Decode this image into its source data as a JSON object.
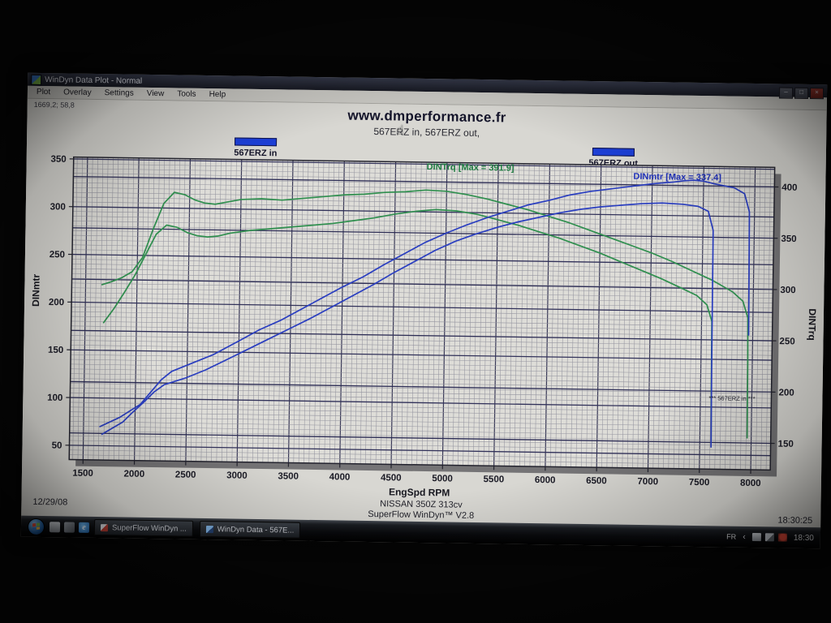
{
  "window": {
    "title": "WinDyn Data Plot - Normal",
    "controls": [
      "minimize",
      "maximize",
      "close"
    ]
  },
  "menu": {
    "items": [
      "Plot",
      "Overlay",
      "Settings",
      "View",
      "Tools",
      "Help"
    ]
  },
  "readout": {
    "value": "1669,2; 58,8"
  },
  "legend": [
    {
      "label": "567ERZ in",
      "swatch": "#1d3fd6"
    },
    {
      "label": "567ERZ out",
      "swatch": "#1d3fd6"
    }
  ],
  "chart_data": {
    "type": "line",
    "title": "www.dmperformance.fr",
    "subtitle": "567ERZ in, 567ERZ out,",
    "grid": true,
    "legend_position": "top",
    "x": {
      "label": "EngSpd RPM",
      "range": [
        1365,
        8190
      ],
      "minor_step": 50,
      "ticks": [
        1500,
        2000,
        2500,
        3000,
        3500,
        4000,
        4500,
        5000,
        5500,
        6000,
        6500,
        7000,
        7500,
        8000
      ]
    },
    "y_left": {
      "label": "DINmtr",
      "range": [
        35,
        352
      ],
      "minor_step": 5,
      "ticks": [
        50,
        100,
        150,
        200,
        250,
        300,
        350
      ]
    },
    "y_right": {
      "label": "DINTrq",
      "range": [
        124,
        419
      ],
      "ticks": [
        150,
        200,
        250,
        300,
        350,
        400
      ]
    },
    "series": [
      {
        "id": "trq-in",
        "name": "567ERZ in (DINTrq)",
        "axis": "right",
        "color": "#2f8f4e",
        "points": [
          [
            1680,
            258
          ],
          [
            1780,
            272
          ],
          [
            1880,
            288
          ],
          [
            1980,
            305
          ],
          [
            2080,
            325
          ],
          [
            2180,
            345
          ],
          [
            2280,
            354
          ],
          [
            2380,
            352
          ],
          [
            2480,
            347
          ],
          [
            2580,
            344
          ],
          [
            2680,
            343
          ],
          [
            2780,
            344
          ],
          [
            2900,
            347
          ],
          [
            3100,
            350
          ],
          [
            3300,
            352
          ],
          [
            3500,
            354
          ],
          [
            3700,
            356
          ],
          [
            3900,
            358
          ],
          [
            4100,
            361
          ],
          [
            4300,
            364
          ],
          [
            4500,
            368
          ],
          [
            4700,
            371
          ],
          [
            4900,
            373
          ],
          [
            5100,
            372
          ],
          [
            5300,
            369
          ],
          [
            5500,
            364
          ],
          [
            5700,
            359
          ],
          [
            5900,
            353
          ],
          [
            6100,
            347
          ],
          [
            6300,
            340
          ],
          [
            6500,
            333
          ],
          [
            6700,
            325
          ],
          [
            6900,
            317
          ],
          [
            7100,
            309
          ],
          [
            7300,
            300
          ],
          [
            7450,
            293
          ],
          [
            7550,
            284
          ],
          [
            7600,
            268
          ],
          [
            7605,
            200
          ],
          [
            7610,
            152
          ]
        ]
      },
      {
        "id": "trq-out",
        "name": "567ERZ out (DINTrq)",
        "axis": "right",
        "color": "#2f8f4e",
        "points": [
          [
            1660,
            295
          ],
          [
            1750,
            298
          ],
          [
            1850,
            302
          ],
          [
            1950,
            308
          ],
          [
            2050,
            322
          ],
          [
            2150,
            350
          ],
          [
            2250,
            375
          ],
          [
            2350,
            386
          ],
          [
            2450,
            384
          ],
          [
            2550,
            379
          ],
          [
            2650,
            376
          ],
          [
            2750,
            375
          ],
          [
            2850,
            377
          ],
          [
            3000,
            380
          ],
          [
            3200,
            381
          ],
          [
            3400,
            380
          ],
          [
            3600,
            382
          ],
          [
            3800,
            384
          ],
          [
            4000,
            386
          ],
          [
            4200,
            387
          ],
          [
            4400,
            389
          ],
          [
            4600,
            390
          ],
          [
            4800,
            391.9
          ],
          [
            5000,
            391
          ],
          [
            5200,
            388
          ],
          [
            5400,
            384
          ],
          [
            5600,
            379
          ],
          [
            5800,
            374
          ],
          [
            6000,
            368
          ],
          [
            6200,
            362
          ],
          [
            6400,
            355
          ],
          [
            6600,
            348
          ],
          [
            6800,
            341
          ],
          [
            7000,
            334
          ],
          [
            7200,
            326
          ],
          [
            7400,
            317
          ],
          [
            7600,
            308
          ],
          [
            7800,
            297
          ],
          [
            7900,
            288
          ],
          [
            7950,
            272
          ],
          [
            7955,
            230
          ],
          [
            7960,
            155
          ]
        ]
      },
      {
        "id": "mtr-in",
        "name": "567ERZ in (DINmtr)",
        "axis": "left",
        "color": "#2a3ec0",
        "points": [
          [
            1680,
            62
          ],
          [
            1880,
            75
          ],
          [
            1980,
            86
          ],
          [
            2080,
            96
          ],
          [
            2180,
            107
          ],
          [
            2280,
            115
          ],
          [
            2480,
            122
          ],
          [
            2680,
            131
          ],
          [
            2900,
            143
          ],
          [
            3100,
            154
          ],
          [
            3300,
            165
          ],
          [
            3500,
            176
          ],
          [
            3700,
            187
          ],
          [
            3900,
            199
          ],
          [
            4100,
            211
          ],
          [
            4300,
            223
          ],
          [
            4500,
            236
          ],
          [
            4700,
            248
          ],
          [
            4900,
            260
          ],
          [
            5100,
            270
          ],
          [
            5300,
            278
          ],
          [
            5500,
            285
          ],
          [
            5700,
            291
          ],
          [
            5900,
            296
          ],
          [
            6100,
            301
          ],
          [
            6300,
            305
          ],
          [
            6500,
            308
          ],
          [
            6700,
            310
          ],
          [
            6900,
            312
          ],
          [
            7100,
            313
          ],
          [
            7300,
            312
          ],
          [
            7450,
            310
          ],
          [
            7550,
            305
          ],
          [
            7600,
            285
          ],
          [
            7605,
            150
          ],
          [
            7610,
            58
          ]
        ]
      },
      {
        "id": "mtr-out",
        "name": "567ERZ out (DINmtr)",
        "axis": "left",
        "color": "#2a3ec0",
        "points": [
          [
            1660,
            70
          ],
          [
            1850,
            80
          ],
          [
            2050,
            94
          ],
          [
            2250,
            120
          ],
          [
            2350,
            129
          ],
          [
            2550,
            138
          ],
          [
            2750,
            147
          ],
          [
            3000,
            162
          ],
          [
            3200,
            174
          ],
          [
            3400,
            184
          ],
          [
            3600,
            196
          ],
          [
            3800,
            208
          ],
          [
            4000,
            220
          ],
          [
            4200,
            231
          ],
          [
            4400,
            244
          ],
          [
            4600,
            256
          ],
          [
            4800,
            268
          ],
          [
            5000,
            278
          ],
          [
            5200,
            287
          ],
          [
            5400,
            295
          ],
          [
            5600,
            302
          ],
          [
            5800,
            309
          ],
          [
            6000,
            314
          ],
          [
            6200,
            320
          ],
          [
            6400,
            324
          ],
          [
            6600,
            327
          ],
          [
            6800,
            330
          ],
          [
            7000,
            333
          ],
          [
            7200,
            335
          ],
          [
            7300,
            336.5
          ],
          [
            7400,
            337.4
          ],
          [
            7500,
            336.5
          ],
          [
            7600,
            334
          ],
          [
            7800,
            330
          ],
          [
            7900,
            324
          ],
          [
            7950,
            305
          ],
          [
            7955,
            240
          ],
          [
            7960,
            176
          ]
        ]
      }
    ],
    "annotations": [
      {
        "id": "anno-trq",
        "text": "DINTrq [Max = 391.9]",
        "color": "#1d7a40"
      },
      {
        "id": "anno-mtr",
        "text": "DINmtr [Max = 337.4]",
        "color": "#2233bb"
      },
      {
        "id": "anno-run",
        "text": "*** 567ERZ in ***",
        "color": "#23232e"
      }
    ]
  },
  "footer": {
    "date": "12/29/08",
    "vehicle": "NISSAN 350Z 313cv",
    "software": "SuperFlow WinDyn™ V2.8",
    "time": "18:30:25"
  },
  "taskbar": {
    "quicklaunch": [
      "show-desktop",
      "window-switcher",
      "internet-explorer"
    ],
    "buttons": [
      {
        "label": "SuperFlow WinDyn ...",
        "icon": "superflow"
      },
      {
        "label": "WinDyn Data - 567E...",
        "icon": "windyn"
      }
    ],
    "tray": {
      "language": "FR",
      "chevron": "‹",
      "icons": [
        "printer",
        "network",
        "volume"
      ],
      "clock": "18:30"
    }
  }
}
